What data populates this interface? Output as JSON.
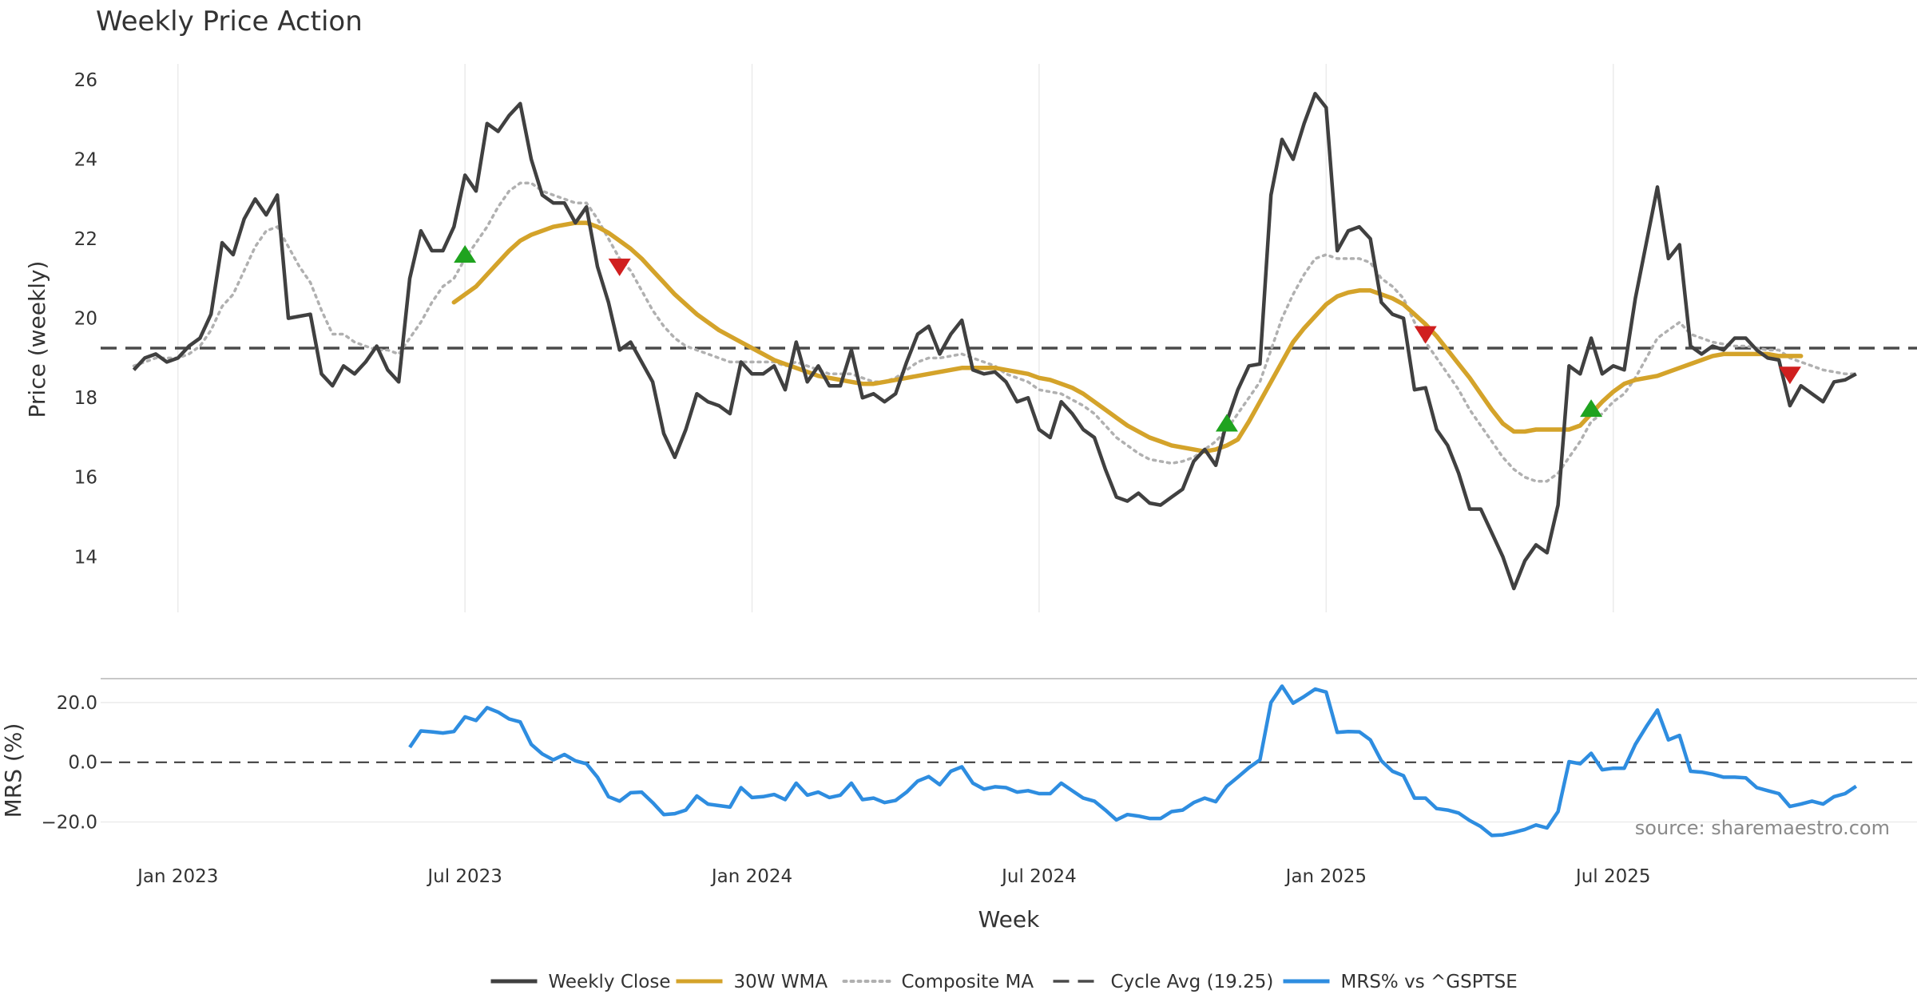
{
  "chart_data": {
    "type": "line",
    "title": "Weekly Price Action",
    "xlabel": "Week",
    "source": "source: sharemaestro.com",
    "x_ticks": [
      "Jan 2023",
      "Jul 2023",
      "Jan 2024",
      "Jul 2024",
      "Jan 2025",
      "Jul 2025"
    ],
    "x_tick_weeks": [
      4,
      30,
      56,
      82,
      108,
      134
    ],
    "week_range": [
      -3,
      155
    ],
    "price_panel": {
      "ylabel": "Price (weekly)",
      "ylim": [
        12.6,
        26.4
      ],
      "y_ticks": [
        14,
        16,
        18,
        20,
        22,
        24,
        26
      ],
      "cycle_avg": 19.25,
      "series": [
        {
          "name": "Weekly Close",
          "color": "#404040",
          "start_week": 0,
          "values": [
            18.7,
            19.0,
            19.1,
            18.9,
            19.0,
            19.3,
            19.5,
            20.1,
            21.9,
            21.6,
            22.5,
            23.0,
            22.6,
            23.1,
            20.0,
            20.05,
            20.1,
            18.6,
            18.3,
            18.8,
            18.6,
            18.9,
            19.3,
            18.7,
            18.4,
            21.0,
            22.2,
            21.7,
            21.7,
            22.3,
            23.6,
            23.2,
            24.9,
            24.7,
            25.1,
            25.4,
            24.0,
            23.1,
            22.9,
            22.9,
            22.4,
            22.8,
            21.3,
            20.4,
            19.2,
            19.4,
            18.9,
            18.4,
            17.1,
            16.5,
            17.2,
            18.1,
            17.9,
            17.8,
            17.6,
            18.9,
            18.6,
            18.6,
            18.8,
            18.2,
            19.4,
            18.4,
            18.8,
            18.3,
            18.3,
            19.2,
            18.0,
            18.1,
            17.9,
            18.1,
            18.9,
            19.6,
            19.8,
            19.1,
            19.6,
            19.95,
            18.7,
            18.6,
            18.65,
            18.4,
            17.9,
            18.0,
            17.2,
            17.0,
            17.9,
            17.6,
            17.2,
            17.0,
            16.2,
            15.5,
            15.4,
            15.6,
            15.35,
            15.3,
            15.5,
            15.7,
            16.4,
            16.7,
            16.3,
            17.4,
            18.2,
            18.8,
            18.85,
            23.1,
            24.5,
            24.0,
            24.9,
            25.65,
            25.3,
            21.7,
            22.2,
            22.3,
            22.0,
            20.4,
            20.1,
            20.0,
            18.2,
            18.25,
            17.2,
            16.8,
            16.1,
            15.2,
            15.2,
            14.6,
            14.0,
            13.2,
            13.9,
            14.3,
            14.1,
            15.3,
            18.8,
            18.6,
            19.5,
            18.6,
            18.8,
            18.7,
            20.5,
            21.9,
            23.3,
            21.5,
            21.85,
            19.3,
            19.1,
            19.3,
            19.2,
            19.5,
            19.5,
            19.2,
            19.0,
            18.95,
            17.8,
            18.3,
            18.1,
            17.9,
            18.4,
            18.45,
            18.6
          ]
        },
        {
          "name": "30W WMA",
          "color": "#d4a32a",
          "start_week": 29,
          "values": [
            20.4,
            20.6,
            20.8,
            21.1,
            21.4,
            21.7,
            21.95,
            22.1,
            22.2,
            22.3,
            22.35,
            22.4,
            22.4,
            22.3,
            22.15,
            21.95,
            21.75,
            21.5,
            21.2,
            20.9,
            20.6,
            20.35,
            20.1,
            19.9,
            19.7,
            19.55,
            19.4,
            19.25,
            19.1,
            18.95,
            18.85,
            18.75,
            18.65,
            18.55,
            18.5,
            18.45,
            18.4,
            18.35,
            18.35,
            18.4,
            18.45,
            18.5,
            18.55,
            18.6,
            18.65,
            18.7,
            18.75,
            18.75,
            18.75,
            18.75,
            18.7,
            18.65,
            18.6,
            18.5,
            18.45,
            18.35,
            18.25,
            18.1,
            17.9,
            17.7,
            17.5,
            17.3,
            17.15,
            17.0,
            16.9,
            16.8,
            16.75,
            16.7,
            16.65,
            16.7,
            16.8,
            16.95,
            17.4,
            17.9,
            18.4,
            18.9,
            19.4,
            19.75,
            20.05,
            20.35,
            20.55,
            20.65,
            20.7,
            20.7,
            20.6,
            20.5,
            20.35,
            20.1,
            19.85,
            19.55,
            19.2,
            18.85,
            18.5,
            18.1,
            17.7,
            17.35,
            17.15,
            17.15,
            17.2,
            17.2,
            17.2,
            17.2,
            17.3,
            17.6,
            17.9,
            18.15,
            18.35,
            18.45,
            18.5,
            18.55,
            18.65,
            18.75,
            18.85,
            18.95,
            19.05,
            19.1,
            19.1,
            19.1,
            19.1,
            19.1,
            19.05,
            19.05,
            19.05
          ]
        },
        {
          "name": "Composite MA",
          "color": "#b0b0b0",
          "start_week": 0,
          "values": [
            18.8,
            18.9,
            19.0,
            19.0,
            19.0,
            19.1,
            19.3,
            19.7,
            20.3,
            20.6,
            21.2,
            21.8,
            22.2,
            22.3,
            21.8,
            21.3,
            20.9,
            20.2,
            19.6,
            19.6,
            19.4,
            19.3,
            19.2,
            19.2,
            19.1,
            19.5,
            19.9,
            20.4,
            20.8,
            21.0,
            21.5,
            21.9,
            22.3,
            22.8,
            23.2,
            23.4,
            23.4,
            23.2,
            23.1,
            23.0,
            22.9,
            22.9,
            22.5,
            22.0,
            21.5,
            21.2,
            20.7,
            20.2,
            19.8,
            19.5,
            19.3,
            19.2,
            19.1,
            19.0,
            18.9,
            18.9,
            18.9,
            18.9,
            18.9,
            18.8,
            18.9,
            18.8,
            18.7,
            18.6,
            18.6,
            18.6,
            18.5,
            18.4,
            18.4,
            18.5,
            18.7,
            18.9,
            19.0,
            19.0,
            19.05,
            19.1,
            19.0,
            18.9,
            18.8,
            18.6,
            18.5,
            18.4,
            18.2,
            18.15,
            18.1,
            17.95,
            17.8,
            17.6,
            17.3,
            17.0,
            16.8,
            16.6,
            16.45,
            16.4,
            16.35,
            16.4,
            16.5,
            16.7,
            16.9,
            17.2,
            17.6,
            18.0,
            18.4,
            19.2,
            20.0,
            20.6,
            21.1,
            21.5,
            21.6,
            21.5,
            21.5,
            21.5,
            21.4,
            21.0,
            20.8,
            20.5,
            19.9,
            19.4,
            19.0,
            18.6,
            18.2,
            17.7,
            17.3,
            16.9,
            16.5,
            16.2,
            16.0,
            15.9,
            15.9,
            16.1,
            16.5,
            16.9,
            17.4,
            17.6,
            17.9,
            18.1,
            18.5,
            19.0,
            19.5,
            19.7,
            19.9,
            19.6,
            19.5,
            19.4,
            19.35,
            19.3,
            19.3,
            19.25,
            19.2,
            19.2,
            19.0,
            18.9,
            18.8,
            18.7,
            18.65,
            18.6,
            18.6
          ]
        }
      ],
      "signals_buy": [
        [
          30,
          21.6
        ],
        [
          99,
          17.35
        ],
        [
          132,
          17.72
        ]
      ],
      "signals_sell": [
        [
          44,
          21.3
        ],
        [
          117,
          19.6
        ],
        [
          150,
          18.58
        ]
      ]
    },
    "mrs_panel": {
      "ylabel": "MRS (%)",
      "ylim": [
        -26,
        28
      ],
      "y_ticks": [
        20,
        0,
        -20
      ],
      "y_tick_labels": [
        "20.0",
        "0.0",
        "−20.0"
      ],
      "series": [
        {
          "name": "MRS% vs ^GSPTSE",
          "color": "#2e8de0",
          "start_week": 25,
          "values": [
            5,
            10.5,
            10.2,
            9.8,
            10.3,
            15.2,
            14.0,
            18.3,
            16.8,
            14.5,
            13.5,
            6.0,
            2.8,
            0.8,
            2.6,
            0.5,
            -0.5,
            -5.0,
            -11.5,
            -13.0,
            -10.2,
            -10.0,
            -13.5,
            -17.5,
            -17.2,
            -16.0,
            -11.3,
            -14.0,
            -14.5,
            -15.0,
            -8.5,
            -11.8,
            -11.5,
            -10.8,
            -12.5,
            -7.0,
            -11.0,
            -10.0,
            -11.8,
            -11.0,
            -7.0,
            -12.5,
            -12.0,
            -13.5,
            -12.8,
            -10.0,
            -6.3,
            -4.8,
            -7.5,
            -3.0,
            -1.5,
            -7.0,
            -9.0,
            -8.2,
            -8.5,
            -10.0,
            -9.5,
            -10.5,
            -10.5,
            -7.0,
            -9.5,
            -12.0,
            -13.0,
            -16.0,
            -19.3,
            -17.5,
            -18.0,
            -18.8,
            -18.8,
            -16.5,
            -16.0,
            -13.5,
            -12.0,
            -13.2,
            -8.0,
            -5.0,
            -1.8,
            0.8,
            20.0,
            25.5,
            19.8,
            22.0,
            24.5,
            23.5,
            10.0,
            10.3,
            10.2,
            7.5,
            0.5,
            -3.0,
            -4.5,
            -12.0,
            -12.0,
            -15.5,
            -16.0,
            -17.0,
            -19.5,
            -21.5,
            -24.5,
            -24.3,
            -23.5,
            -22.5,
            -21.0,
            -22.0,
            -16.5,
            0.2,
            -0.5,
            3.0,
            -2.5,
            -2.0,
            -2.0,
            6.0,
            12.0,
            17.5,
            7.5,
            9.0,
            -3.0,
            -3.3,
            -4.0,
            -5.0,
            -5.0,
            -5.2,
            -8.5,
            -9.5,
            -10.5,
            -14.8,
            -14.0,
            -13.0,
            -14.0,
            -11.5,
            -10.5,
            -8.0
          ]
        }
      ]
    },
    "legend": {
      "position": "bottom-center",
      "entries": [
        {
          "label": "Weekly Close",
          "style": "solid",
          "color": "#404040"
        },
        {
          "label": "30W WMA",
          "style": "solid",
          "color": "#d4a32a"
        },
        {
          "label": "Composite MA",
          "style": "dotted",
          "color": "#b0b0b0"
        },
        {
          "label": "Cycle Avg (19.25)",
          "style": "dashed",
          "color": "#4a4a4a"
        },
        {
          "label": "MRS% vs ^GSPTSE",
          "style": "solid",
          "color": "#2e8de0"
        }
      ]
    },
    "colors": {
      "buy": "#1fa31f",
      "sell": "#d01f1f",
      "grid": "#ebebeb",
      "cycle_line": "#4a4a4a"
    }
  }
}
